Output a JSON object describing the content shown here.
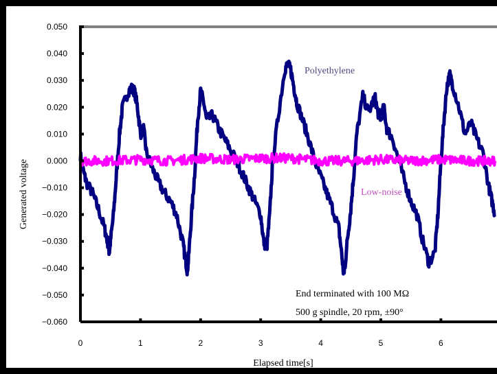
{
  "chart_data": {
    "type": "line",
    "xlabel": "Elapsed time[s]",
    "ylabel": "Generated voltage",
    "xlim": [
      0,
      7
    ],
    "ylim": [
      -0.06,
      0.05
    ],
    "x_ticks": [
      "0",
      "1",
      "2",
      "3",
      "4",
      "5",
      "6"
    ],
    "y_ticks": [
      "0.050",
      "0.040",
      "0.030",
      "0.020",
      "0.010",
      "0.000",
      "−0.010",
      "−0.020",
      "−0.030",
      "−0.040",
      "−0.050",
      "−0.060"
    ],
    "grid": false,
    "series": [
      {
        "name": "Polyethylene",
        "color": "#000080",
        "x": [
          0,
          0.05,
          0.1,
          0.2,
          0.3,
          0.4,
          0.45,
          0.48,
          0.5,
          0.55,
          0.6,
          0.65,
          0.7,
          0.8,
          0.85,
          0.9,
          0.95,
          1.0,
          1.05,
          1.1,
          1.2,
          1.3,
          1.4,
          1.5,
          1.6,
          1.7,
          1.75,
          1.78,
          1.8,
          1.85,
          1.9,
          1.95,
          2.0,
          2.05,
          2.1,
          2.2,
          2.3,
          2.4,
          2.5,
          2.6,
          2.7,
          2.8,
          2.9,
          3.0,
          3.05,
          3.1,
          3.15,
          3.2,
          3.3,
          3.4,
          3.45,
          3.5,
          3.55,
          3.6,
          3.7,
          3.8,
          3.9,
          4.0,
          4.1,
          4.2,
          4.3,
          4.35,
          4.38,
          4.4,
          4.45,
          4.5,
          4.55,
          4.6,
          4.7,
          4.8,
          4.9,
          4.95,
          5.0,
          5.05,
          5.1,
          5.2,
          5.3,
          5.4,
          5.5,
          5.6,
          5.7,
          5.8,
          5.9,
          5.95,
          6.0,
          6.05,
          6.1,
          6.15,
          6.2,
          6.3,
          6.4,
          6.5,
          6.6,
          6.7,
          6.8,
          6.85,
          6.9
        ],
        "y": [
          0.002,
          -0.004,
          -0.008,
          -0.012,
          -0.018,
          -0.025,
          -0.03,
          -0.034,
          -0.03,
          -0.02,
          -0.005,
          0.01,
          0.02,
          0.026,
          0.027,
          0.026,
          0.02,
          0.01,
          0.012,
          0.003,
          -0.003,
          -0.008,
          -0.012,
          -0.015,
          -0.02,
          -0.03,
          -0.037,
          -0.041,
          -0.036,
          -0.02,
          -0.005,
          0.015,
          0.026,
          0.022,
          0.015,
          0.017,
          0.012,
          0.008,
          0.004,
          0.0,
          -0.005,
          -0.01,
          -0.015,
          -0.02,
          -0.03,
          -0.033,
          -0.02,
          0.0,
          0.018,
          0.034,
          0.036,
          0.034,
          0.028,
          0.022,
          0.015,
          0.008,
          0.0,
          -0.006,
          -0.012,
          -0.018,
          -0.025,
          -0.035,
          -0.042,
          -0.04,
          -0.028,
          -0.018,
          -0.005,
          0.01,
          0.024,
          0.018,
          0.024,
          0.018,
          0.016,
          0.02,
          0.012,
          0.008,
          0.0,
          -0.008,
          -0.015,
          -0.02,
          -0.03,
          -0.038,
          -0.034,
          -0.02,
          0.0,
          0.015,
          0.028,
          0.032,
          0.028,
          0.02,
          0.01,
          0.014,
          0.008,
          0.003,
          -0.01,
          -0.015,
          -0.02
        ]
      },
      {
        "name": "Low-noise",
        "color": "#ff00ff",
        "x": [
          0,
          0.5,
          1.0,
          1.5,
          2.0,
          2.5,
          3.0,
          3.5,
          4.0,
          4.5,
          5.0,
          5.5,
          6.0,
          6.5,
          6.9
        ],
        "y": [
          0.0,
          0.0,
          0.0005,
          0.0,
          0.001,
          0.0005,
          0.001,
          0.001,
          0.0,
          0.0,
          0.0005,
          0.0,
          0.0005,
          0.0,
          0.0
        ]
      }
    ],
    "annotations": [
      "End terminated with 100 MΩ",
      "500 g spindle, 20 rpm, ±90°"
    ]
  }
}
